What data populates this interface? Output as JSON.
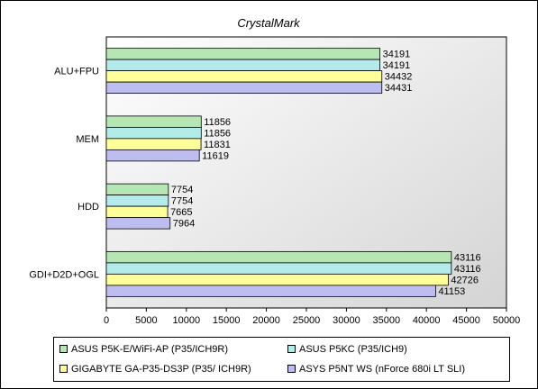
{
  "chart_data": {
    "type": "bar",
    "orientation": "horizontal",
    "title": "CrystalMark",
    "xlabel": "",
    "ylabel": "",
    "categories": [
      "ALU+FPU",
      "MEM",
      "HDD",
      "GDI+D2D+OGL"
    ],
    "xlim": [
      0,
      50000
    ],
    "xticks": [
      0,
      5000,
      10000,
      15000,
      20000,
      25000,
      30000,
      35000,
      40000,
      45000,
      50000
    ],
    "grid": false,
    "legend_position": "bottom",
    "series": [
      {
        "name": "ASUS P5K-E/WiFi-AP (P35/ICH9R)",
        "color": "#b7e6b5",
        "values": [
          34191,
          11856,
          7754,
          43116
        ]
      },
      {
        "name": "ASUS P5KC (P35/ICH9)",
        "color": "#b2ebea",
        "values": [
          34191,
          11856,
          7754,
          43116
        ]
      },
      {
        "name": "GIGABYTE GA-P35-DS3P (P35/ ICH9R)",
        "color": "#ffff99",
        "values": [
          34432,
          11831,
          7665,
          42726
        ]
      },
      {
        "name": "ASYS P5NT WS (nForce 680i LT SLI)",
        "color": "#bdbdf0",
        "values": [
          34431,
          11619,
          7964,
          41153
        ]
      }
    ]
  }
}
